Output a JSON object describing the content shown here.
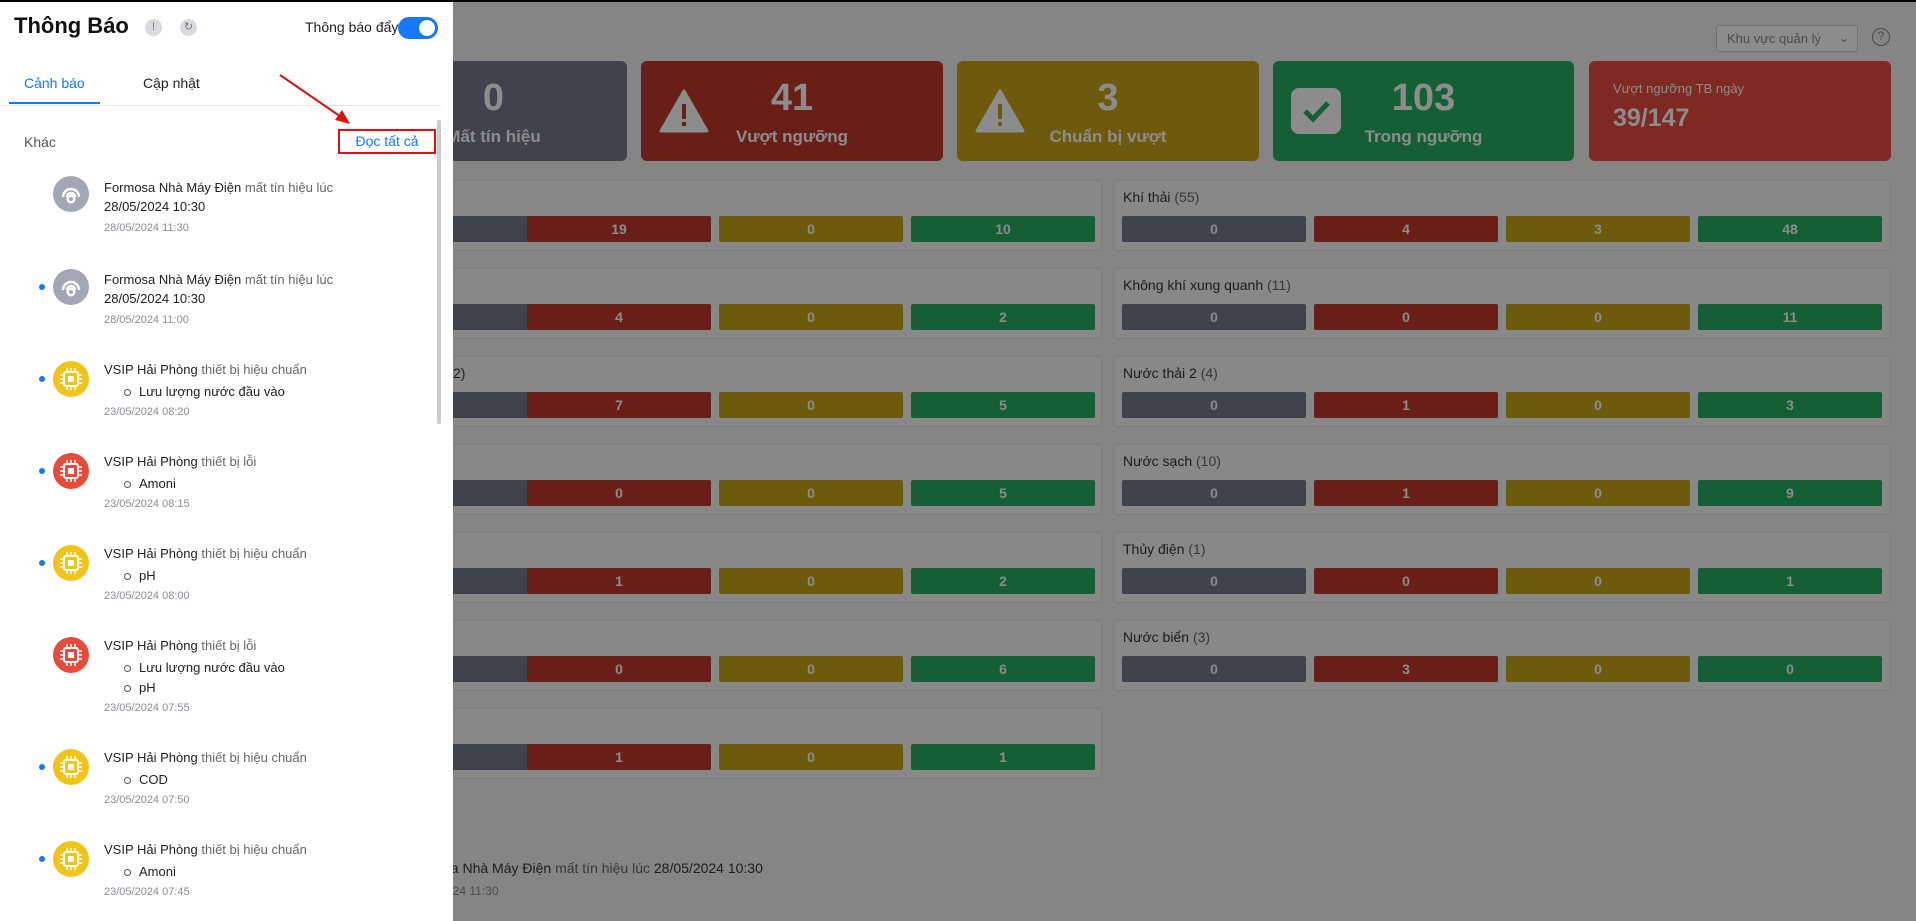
{
  "header": {
    "area_select": "Khu vực quản lý"
  },
  "summary": {
    "lost": {
      "value": "0",
      "label": "Mất tín hiệu"
    },
    "over": {
      "value": "41",
      "label": "Vượt ngưỡng"
    },
    "near": {
      "value": "3",
      "label": "Chuẩn bị vượt"
    },
    "within": {
      "value": "103",
      "label": "Trong ngưỡng"
    },
    "daily": {
      "label": "Vượt ngưỡng TB ngày",
      "value": "39/147"
    }
  },
  "groups_left": [
    {
      "values": [
        "19",
        "0",
        "10"
      ]
    },
    {
      "values": [
        "4",
        "0",
        "2"
      ]
    },
    {
      "title_fragment": "2)",
      "values": [
        "7",
        "0",
        "5"
      ]
    },
    {
      "values": [
        "0",
        "0",
        "5"
      ]
    },
    {
      "values": [
        "1",
        "0",
        "2"
      ]
    },
    {
      "values": [
        "0",
        "0",
        "6"
      ]
    },
    {
      "values": [
        "1",
        "0",
        "1"
      ]
    }
  ],
  "groups_right": [
    {
      "name": "Khí thải",
      "count": "(55)",
      "values": [
        "0",
        "4",
        "3",
        "48"
      ]
    },
    {
      "name": "Không khí xung quanh",
      "count": "(11)",
      "values": [
        "0",
        "0",
        "0",
        "11"
      ]
    },
    {
      "name": "Nước thải 2",
      "count": "(4)",
      "values": [
        "0",
        "1",
        "0",
        "3"
      ]
    },
    {
      "name": "Nước sạch",
      "count": "(10)",
      "values": [
        "0",
        "1",
        "0",
        "9"
      ]
    },
    {
      "name": "Thủy điện",
      "count": "(1)",
      "values": [
        "0",
        "0",
        "0",
        "1"
      ]
    },
    {
      "name": "Nước biển",
      "count": "(3)",
      "values": [
        "0",
        "3",
        "0",
        "0"
      ]
    }
  ],
  "bottom": {
    "title_fragment": "i",
    "station": "osa Nhà Máy Điện",
    "text": "mất tín hiệu lúc",
    "datetime": "28/05/2024 10:30",
    "time": "/2024 11:30"
  },
  "panel": {
    "title": "Thông Báo",
    "push_label": "Thông báo đẩy",
    "push_enabled": true,
    "tabs": [
      "Cảnh báo",
      "Cập nhật"
    ],
    "active_tab": "Cảnh báo",
    "section_label": "Khác",
    "read_all": "Đọc tất cả",
    "notifications": [
      {
        "station": "Formosa Nhà Máy Điện",
        "action": "mất tín hiệu lúc",
        "datetime": "28/05/2024 10:30",
        "time": "28/05/2024 11:30",
        "status": "gray",
        "icon": "signal-lost-icon",
        "unread": false
      },
      {
        "station": "Formosa Nhà Máy Điện",
        "action": "mất tín hiệu lúc",
        "datetime": "28/05/2024 10:30",
        "time": "28/05/2024 11:00",
        "status": "gray",
        "icon": "signal-lost-icon",
        "unread": true
      },
      {
        "station": "VSIP Hải Phòng",
        "action": "thiết bị hiệu chuẩn",
        "params": [
          "Lưu lượng nước đầu vào"
        ],
        "time": "23/05/2024 08:20",
        "status": "yellow",
        "icon": "chip-icon",
        "unread": true
      },
      {
        "station": "VSIP Hải Phòng",
        "action": "thiết bị lỗi",
        "params": [
          "Amoni"
        ],
        "time": "23/05/2024 08:15",
        "status": "red",
        "icon": "chip-icon",
        "unread": true
      },
      {
        "station": "VSIP Hải Phòng",
        "action": "thiết bị hiệu chuẩn",
        "params": [
          "pH"
        ],
        "time": "23/05/2024 08:00",
        "status": "yellow",
        "icon": "chip-icon",
        "unread": true
      },
      {
        "station": "VSIP Hải Phòng",
        "action": "thiết bị lỗi",
        "params": [
          "Lưu lượng nước đầu vào",
          "pH"
        ],
        "time": "23/05/2024 07:55",
        "status": "red",
        "icon": "chip-icon",
        "unread": false
      },
      {
        "station": "VSIP Hải Phòng",
        "action": "thiết bị hiệu chuẩn",
        "params": [
          "COD"
        ],
        "time": "23/05/2024 07:50",
        "status": "yellow",
        "icon": "chip-icon",
        "unread": true
      },
      {
        "station": "VSIP Hải Phòng",
        "action": "thiết bị hiệu chuẩn",
        "params": [
          "Amoni"
        ],
        "time": "23/05/2024 07:45",
        "status": "yellow",
        "icon": "chip-icon",
        "unread": true
      }
    ]
  }
}
